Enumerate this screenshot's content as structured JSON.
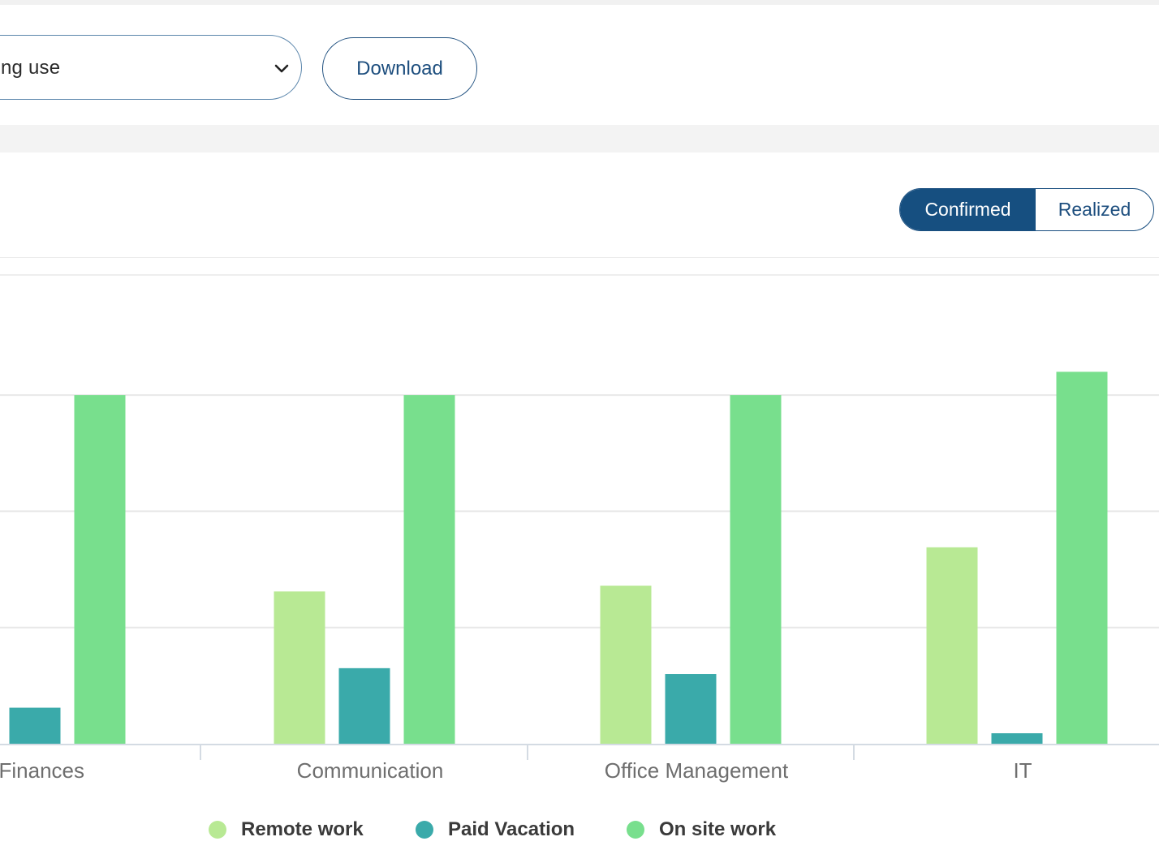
{
  "toolbar": {
    "select_value": "ng use",
    "download_label": "Download"
  },
  "toggle": {
    "confirmed_label": "Confirmed",
    "realized_label": "Realized",
    "active": "Confirmed"
  },
  "colors": {
    "accent": "#164f80",
    "remote": "#b8e994",
    "vacation": "#3aaaaa",
    "onsite": "#78df8d"
  },
  "legend": [
    {
      "label": "Remote work",
      "color": "#b8e994"
    },
    {
      "label": "Paid Vacation",
      "color": "#3aaaaa"
    },
    {
      "label": "On site work",
      "color": "#78df8d"
    }
  ],
  "chart_data": {
    "type": "bar",
    "categories": [
      "Finances",
      "Communication",
      "Office Management",
      "IT"
    ],
    "series": [
      {
        "name": "Remote work",
        "values": [
          null,
          1.31,
          1.36,
          1.69
        ]
      },
      {
        "name": "Paid Vacation",
        "values": [
          0.31,
          0.65,
          0.6,
          0.09
        ]
      },
      {
        "name": "On site work",
        "values": [
          3.0,
          3.0,
          3.0,
          3.2
        ]
      }
    ],
    "ylim": [
      0,
      4
    ],
    "grid": true,
    "legend_position": "bottom"
  }
}
